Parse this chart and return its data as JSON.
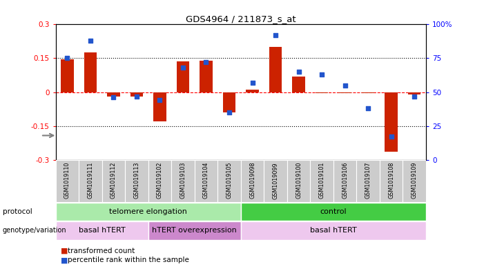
{
  "title": "GDS4964 / 211873_s_at",
  "samples": [
    "GSM1019110",
    "GSM1019111",
    "GSM1019112",
    "GSM1019113",
    "GSM1019102",
    "GSM1019103",
    "GSM1019104",
    "GSM1019105",
    "GSM1019098",
    "GSM1019099",
    "GSM1019100",
    "GSM1019101",
    "GSM1019106",
    "GSM1019107",
    "GSM1019108",
    "GSM1019109"
  ],
  "red_values": [
    0.145,
    0.175,
    -0.02,
    -0.02,
    -0.13,
    0.135,
    0.14,
    -0.09,
    0.01,
    0.2,
    0.07,
    -0.005,
    -0.005,
    -0.005,
    -0.265,
    -0.01
  ],
  "blue_values_pct": [
    75,
    88,
    46,
    47,
    44,
    68,
    72,
    35,
    57,
    92,
    65,
    63,
    55,
    38,
    17,
    47
  ],
  "ylim_left": [
    -0.3,
    0.3
  ],
  "ylim_right": [
    0,
    100
  ],
  "yticks_left": [
    -0.3,
    -0.15,
    0.0,
    0.15,
    0.3
  ],
  "ytick_labels_left": [
    "-0.3",
    "-0.15",
    "0",
    "0.15",
    "0.3"
  ],
  "yticks_right": [
    0,
    25,
    50,
    75,
    100
  ],
  "ytick_labels_right": [
    "0",
    "25",
    "50",
    "75",
    "100%"
  ],
  "hline_dotted": [
    0.15,
    -0.15
  ],
  "bar_color": "#cc2200",
  "dot_color": "#2255cc",
  "protocol_groups": [
    {
      "label": "telomere elongation",
      "start": 0,
      "end": 8,
      "color": "#aaeaaa"
    },
    {
      "label": "control",
      "start": 8,
      "end": 16,
      "color": "#44cc44"
    }
  ],
  "genotype_groups": [
    {
      "label": "basal hTERT",
      "start": 0,
      "end": 4,
      "color": "#eec8ee"
    },
    {
      "label": "hTERT overexpression",
      "start": 4,
      "end": 8,
      "color": "#cc88cc"
    },
    {
      "label": "basal hTERT",
      "start": 8,
      "end": 16,
      "color": "#eec8ee"
    }
  ],
  "legend_items": [
    {
      "label": "transformed count",
      "color": "#cc2200"
    },
    {
      "label": "percentile rank within the sample",
      "color": "#2255cc"
    }
  ],
  "background_color": "#ffffff",
  "tick_bg_color": "#cccccc"
}
